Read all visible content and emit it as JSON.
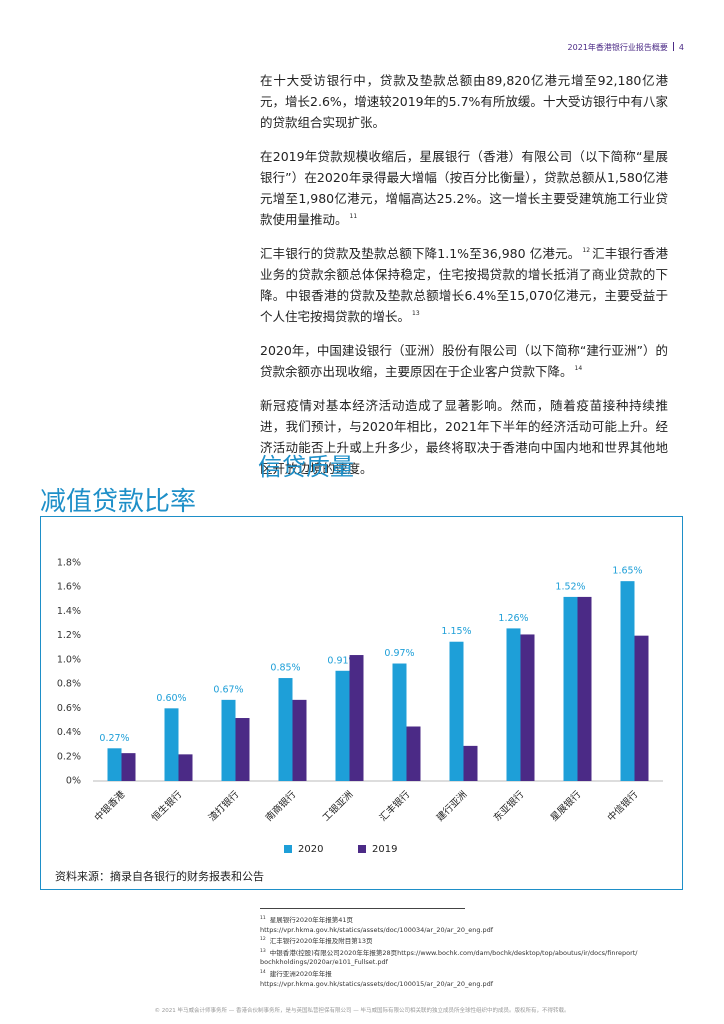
{
  "header": {
    "title": "2021年香港银行业报告概要",
    "page": "4"
  },
  "paragraphs": [
    {
      "text": "在十大受访银行中，贷款及垫款总额由89,820亿港元增至92,180亿港元，增长2.6%，增速较2019年的5.7%有所放缓。十大受访银行中有八家的贷款组合实现扩张。"
    },
    {
      "text": "在2019年贷款规模收缩后，星展银行（香港）有限公司（以下简称“星展银行”）在2020年录得最大增幅（按百分比衡量），贷款总额从1,580亿港元增至1,980亿港元，增幅高达25.2%。这一增长主要受建筑施工行业贷款使用量推动。",
      "note": "11"
    },
    {
      "text": "汇丰银行的贷款及垫款总额下降1.1%至36,980 亿港元。",
      "note": "12",
      "text2": "汇丰银行香港业务的贷款余额总体保持稳定，住宅按揭贷款的增长抵消了商业贷款的下降。中银香港的贷款及垫款总额增长6.4%至15,070亿港元，主要受益于个人住宅按揭贷款的增长。",
      "note2": "13"
    },
    {
      "text": "2020年，中国建设银行（亚洲）股份有限公司（以下简称“建行亚洲”）的贷款余额亦出现收缩，主要原因在于企业客户贷款下降。",
      "note": "14"
    },
    {
      "text": "新冠疫情对基本经济活动造成了显著影响。然而，随着疫苗接种持续推进，我们预计，与2020年相比，2021年下半年的经济活动可能上升。经济活动能否上升或上升多少，最终将取决于香港向中国内地和世界其他地区开放边境的速度。"
    }
  ],
  "section_title": "信贷质量",
  "chart_data": {
    "type": "bar",
    "title": "减值贷款比率",
    "categories": [
      "中银香港",
      "恒生银行",
      "渣打银行",
      "南商银行",
      "工银亚洲",
      "汇丰银行",
      "建行亚洲",
      "东亚银行",
      "星展银行",
      "中信银行"
    ],
    "series": [
      {
        "name": "2020",
        "color": "#1e9fd8",
        "values": [
          0.27,
          0.6,
          0.67,
          0.85,
          0.91,
          0.97,
          1.15,
          1.26,
          1.52,
          1.65
        ],
        "value_labels": [
          "0.27%",
          "0.60%",
          "0.67%",
          "0.85%",
          "0.91%",
          "0.97%",
          "1.15%",
          "1.26%",
          "1.52%",
          "1.65%"
        ]
      },
      {
        "name": "2019",
        "color": "#4b2a86",
        "values": [
          0.23,
          0.22,
          0.52,
          0.67,
          1.04,
          0.45,
          0.29,
          1.21,
          1.52,
          1.2
        ]
      }
    ],
    "ylim": [
      0,
      1.8
    ],
    "yticks": [
      {
        "value": 0,
        "label": "0%"
      },
      {
        "value": 0.2,
        "label": "0.2%"
      },
      {
        "value": 0.4,
        "label": "0.4%"
      },
      {
        "value": 0.6,
        "label": "0.6%"
      },
      {
        "value": 0.8,
        "label": "0.8%"
      },
      {
        "value": 1.0,
        "label": "1.0%"
      },
      {
        "value": 1.2,
        "label": "1.2%"
      },
      {
        "value": 1.4,
        "label": "1.4%"
      },
      {
        "value": 1.6,
        "label": "1.6%"
      },
      {
        "value": 1.8,
        "label": "1.8%"
      }
    ],
    "grid": false,
    "legend": "bottom",
    "source": "资料来源：摘录自各银行的财务报表和公告"
  },
  "footnotes": [
    {
      "num": "11",
      "lines": [
        "星展银行2020年年报第41页",
        "https://vpr.hkma.gov.hk/statics/assets/doc/100034/ar_20/ar_20_eng.pdf"
      ]
    },
    {
      "num": "12",
      "lines": [
        "汇丰银行2020年年报及附目第13页"
      ]
    },
    {
      "num": "13",
      "lines": [
        "中银香港(控股)有限公司2020年年报第28页https://www.bochk.com/dam/bochk/desktop/top/aboutus/ir/docs/finreport/",
        "bochkholdings/2020ar/e101_Fullset.pdf"
      ]
    },
    {
      "num": "14",
      "lines": [
        "建行亚洲2020年年报",
        "https://vpr.hkma.gov.hk/statics/assets/doc/100015/ar_20/ar_20_eng.pdf"
      ]
    }
  ],
  "footer": "© 2021 毕马威会计师事务所 — 香港合伙制事务所，是与英国私营担保有限公司 — 毕马威国际有限公司相关联的独立成员所全球性组织中的成员。版权所有，不得转载。"
}
